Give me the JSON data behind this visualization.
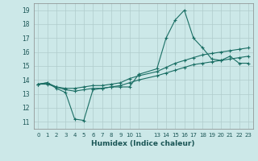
{
  "xlabel": "Humidex (Indice chaleur)",
  "xlim": [
    -0.5,
    23.5
  ],
  "ylim": [
    10.5,
    19.5
  ],
  "yticks": [
    11,
    12,
    13,
    14,
    15,
    16,
    17,
    18,
    19
  ],
  "xticks": [
    0,
    1,
    2,
    3,
    4,
    5,
    6,
    7,
    8,
    9,
    10,
    11,
    13,
    14,
    15,
    16,
    17,
    18,
    19,
    20,
    21,
    22,
    23
  ],
  "xtick_labels": [
    "0",
    "1",
    "2",
    "3",
    "4",
    "5",
    "6",
    "7",
    "8",
    "9",
    "10",
    "11",
    "13",
    "14",
    "15",
    "16",
    "17",
    "18",
    "19",
    "20",
    "21",
    "22",
    "23"
  ],
  "bg_color": "#cce8e8",
  "grid_color": "#b0cccc",
  "line_color": "#1a6e64",
  "line1_x": [
    0,
    1,
    2,
    3,
    4,
    5,
    6,
    7,
    8,
    9,
    10,
    11,
    13,
    14,
    15,
    16,
    17,
    18,
    19,
    20,
    21,
    22,
    23
  ],
  "line1_y": [
    13.7,
    13.8,
    13.4,
    13.1,
    11.2,
    11.1,
    13.3,
    13.4,
    13.5,
    13.5,
    13.5,
    14.4,
    14.8,
    17.0,
    18.3,
    19.0,
    17.0,
    16.3,
    15.5,
    15.4,
    15.7,
    15.2,
    15.2
  ],
  "line2_x": [
    0,
    1,
    2,
    3,
    4,
    5,
    6,
    7,
    8,
    9,
    10,
    11,
    13,
    14,
    15,
    16,
    17,
    18,
    19,
    20,
    21,
    22,
    23
  ],
  "line2_y": [
    13.7,
    13.8,
    13.5,
    13.4,
    13.4,
    13.5,
    13.6,
    13.6,
    13.7,
    13.8,
    14.1,
    14.3,
    14.6,
    14.9,
    15.2,
    15.4,
    15.6,
    15.8,
    15.9,
    16.0,
    16.1,
    16.2,
    16.3
  ],
  "line3_x": [
    0,
    1,
    2,
    3,
    4,
    5,
    6,
    7,
    8,
    9,
    10,
    11,
    13,
    14,
    15,
    16,
    17,
    18,
    19,
    20,
    21,
    22,
    23
  ],
  "line3_y": [
    13.7,
    13.7,
    13.5,
    13.3,
    13.2,
    13.3,
    13.4,
    13.4,
    13.5,
    13.6,
    13.8,
    14.0,
    14.3,
    14.5,
    14.7,
    14.9,
    15.1,
    15.2,
    15.3,
    15.4,
    15.5,
    15.6,
    15.7
  ]
}
